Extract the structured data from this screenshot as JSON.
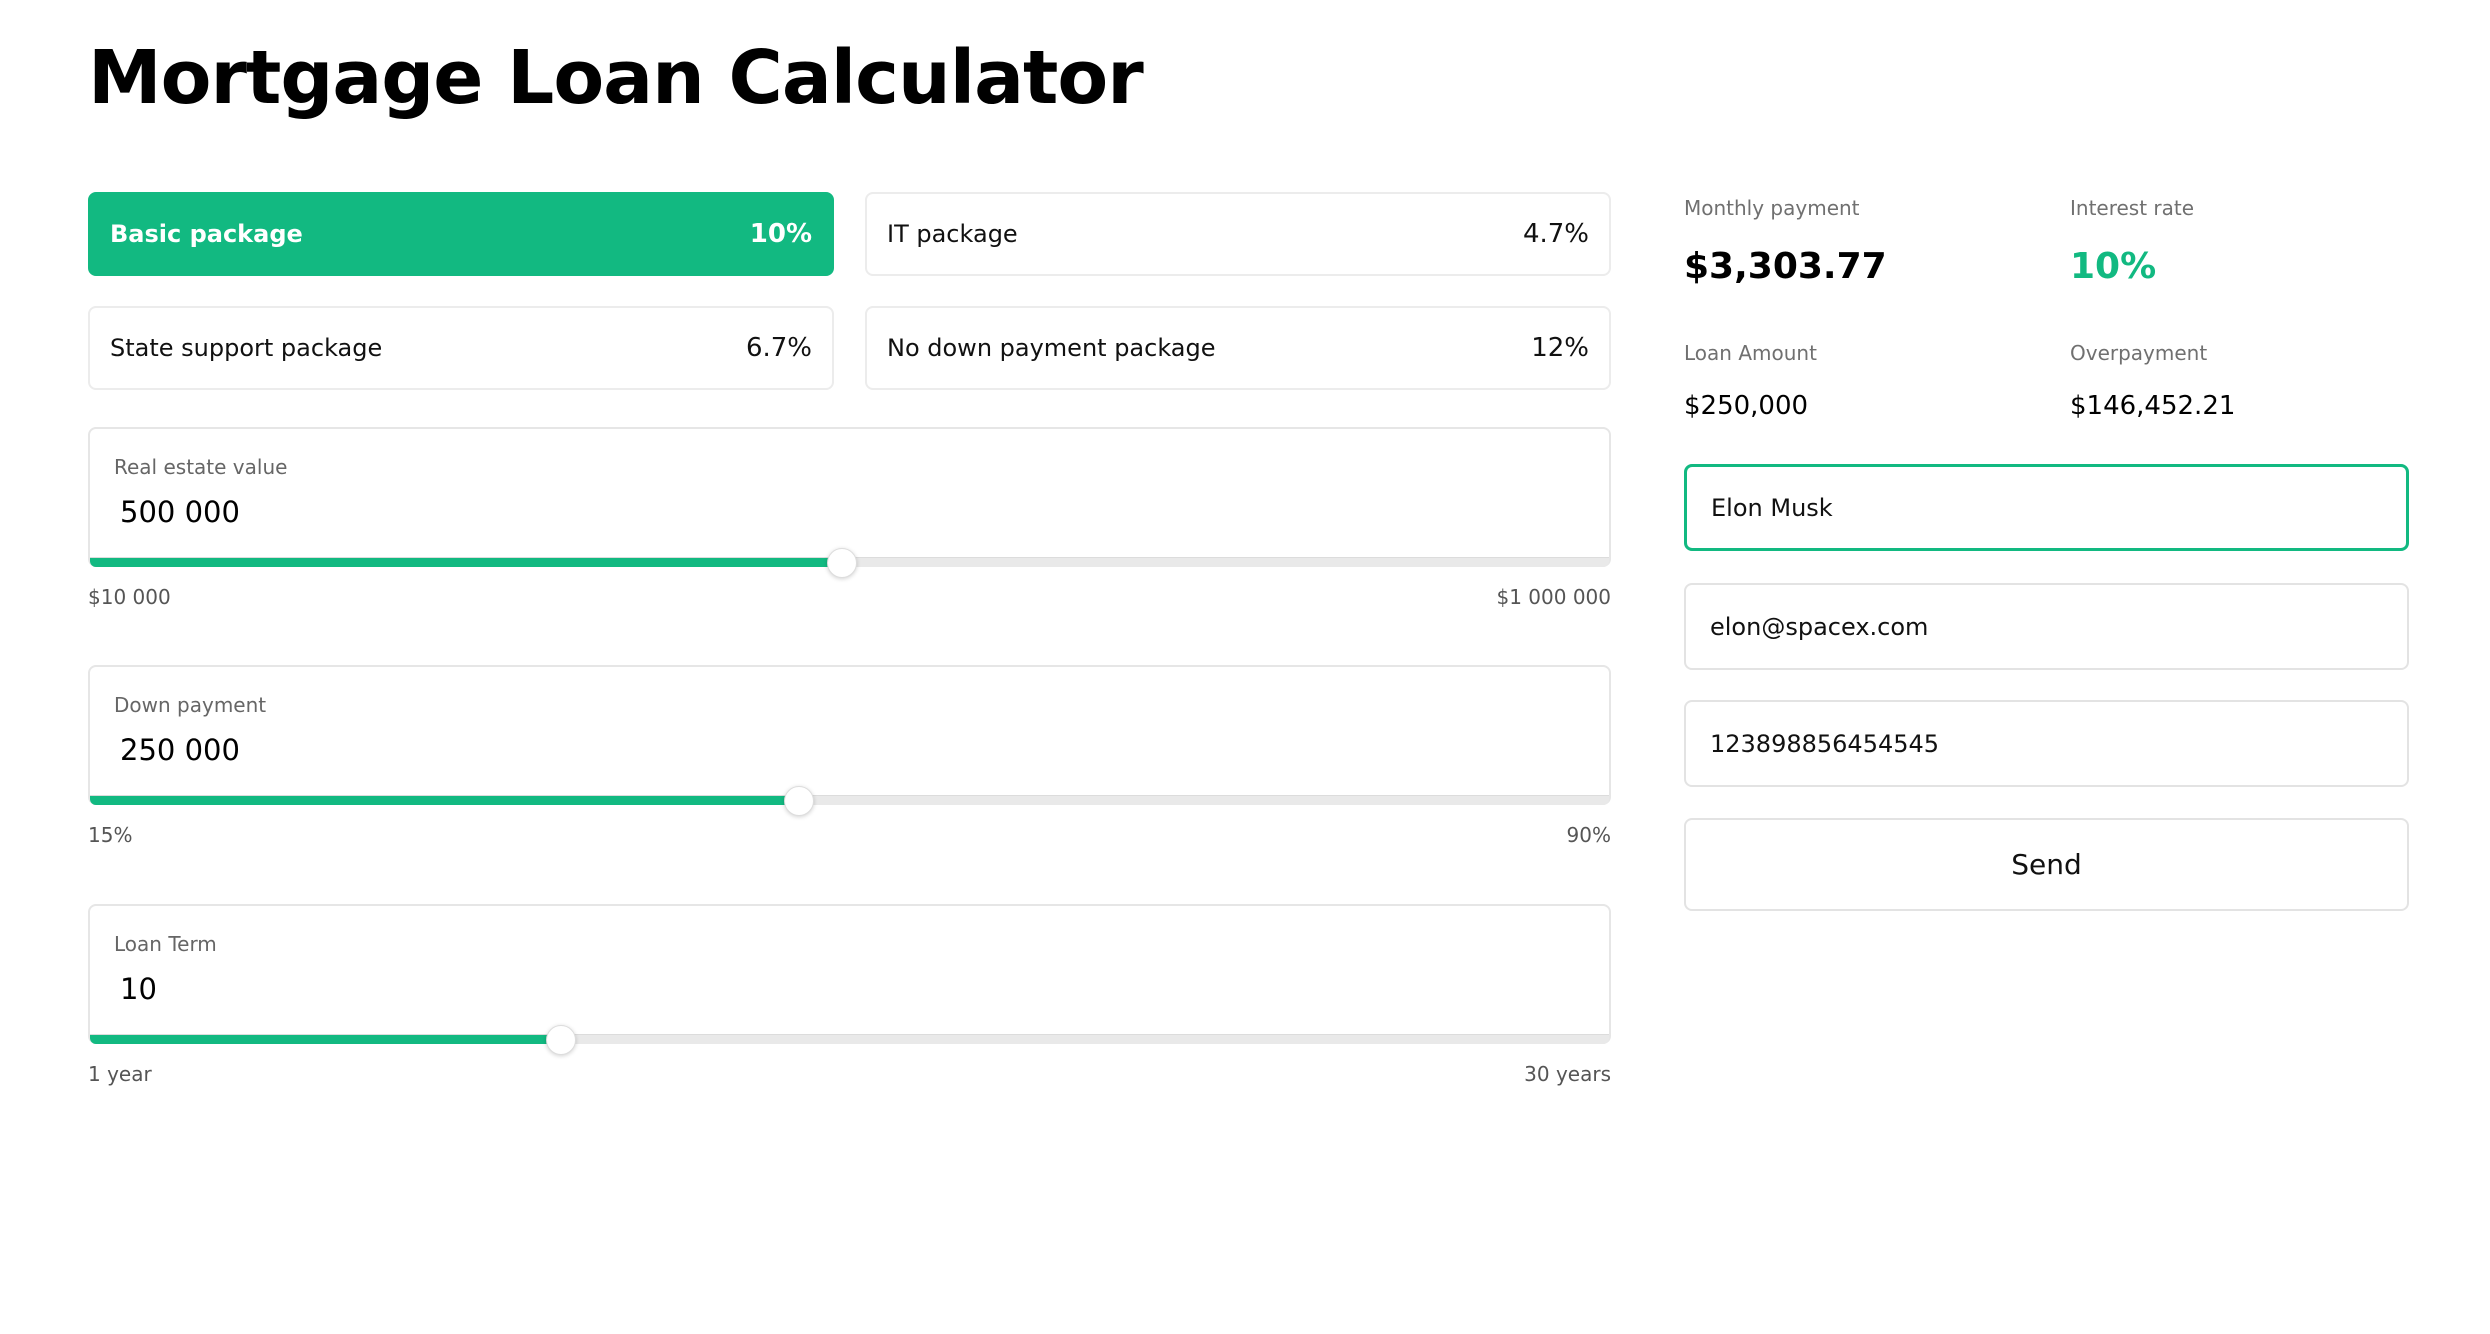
{
  "page": {
    "title": "Mortgage Loan Calculator"
  },
  "packages": [
    {
      "name": "Basic package",
      "rate": "10%",
      "active": true
    },
    {
      "name": "IT package",
      "rate": "4.7%",
      "active": false
    },
    {
      "name": "State support package",
      "rate": "6.7%",
      "active": false
    },
    {
      "name": "No down payment package",
      "rate": "12%",
      "active": false
    }
  ],
  "real_estate": {
    "label": "Real estate value",
    "value": "500 000",
    "level": 0.495,
    "min_label": "$10 000",
    "max_label": "$1 000 000"
  },
  "down_payment": {
    "label": "Down payment",
    "value": "250 000",
    "level": 0.467,
    "min_label": "15%",
    "max_label": "90%"
  },
  "loan_term": {
    "label": "Loan Term",
    "value": "10",
    "level": 0.31,
    "min_label": "1 year",
    "max_label": "30 years"
  },
  "summary": {
    "monthly_payment_label": "Monthly payment",
    "monthly_payment": "$3,303.77",
    "interest_rate_label": "Interest rate",
    "interest_rate": "10%",
    "loan_amount_label": "Loan Amount",
    "loan_amount": "$250,000",
    "overpayment_label": "Overpayment",
    "overpayment": "$146,452.21"
  },
  "form": {
    "name_value": "Elon Musk",
    "email_value": "elon@spacex.com",
    "phone_value": "123898856454545",
    "send_label": "Send"
  },
  "colors": {
    "accent": "#12b981"
  }
}
